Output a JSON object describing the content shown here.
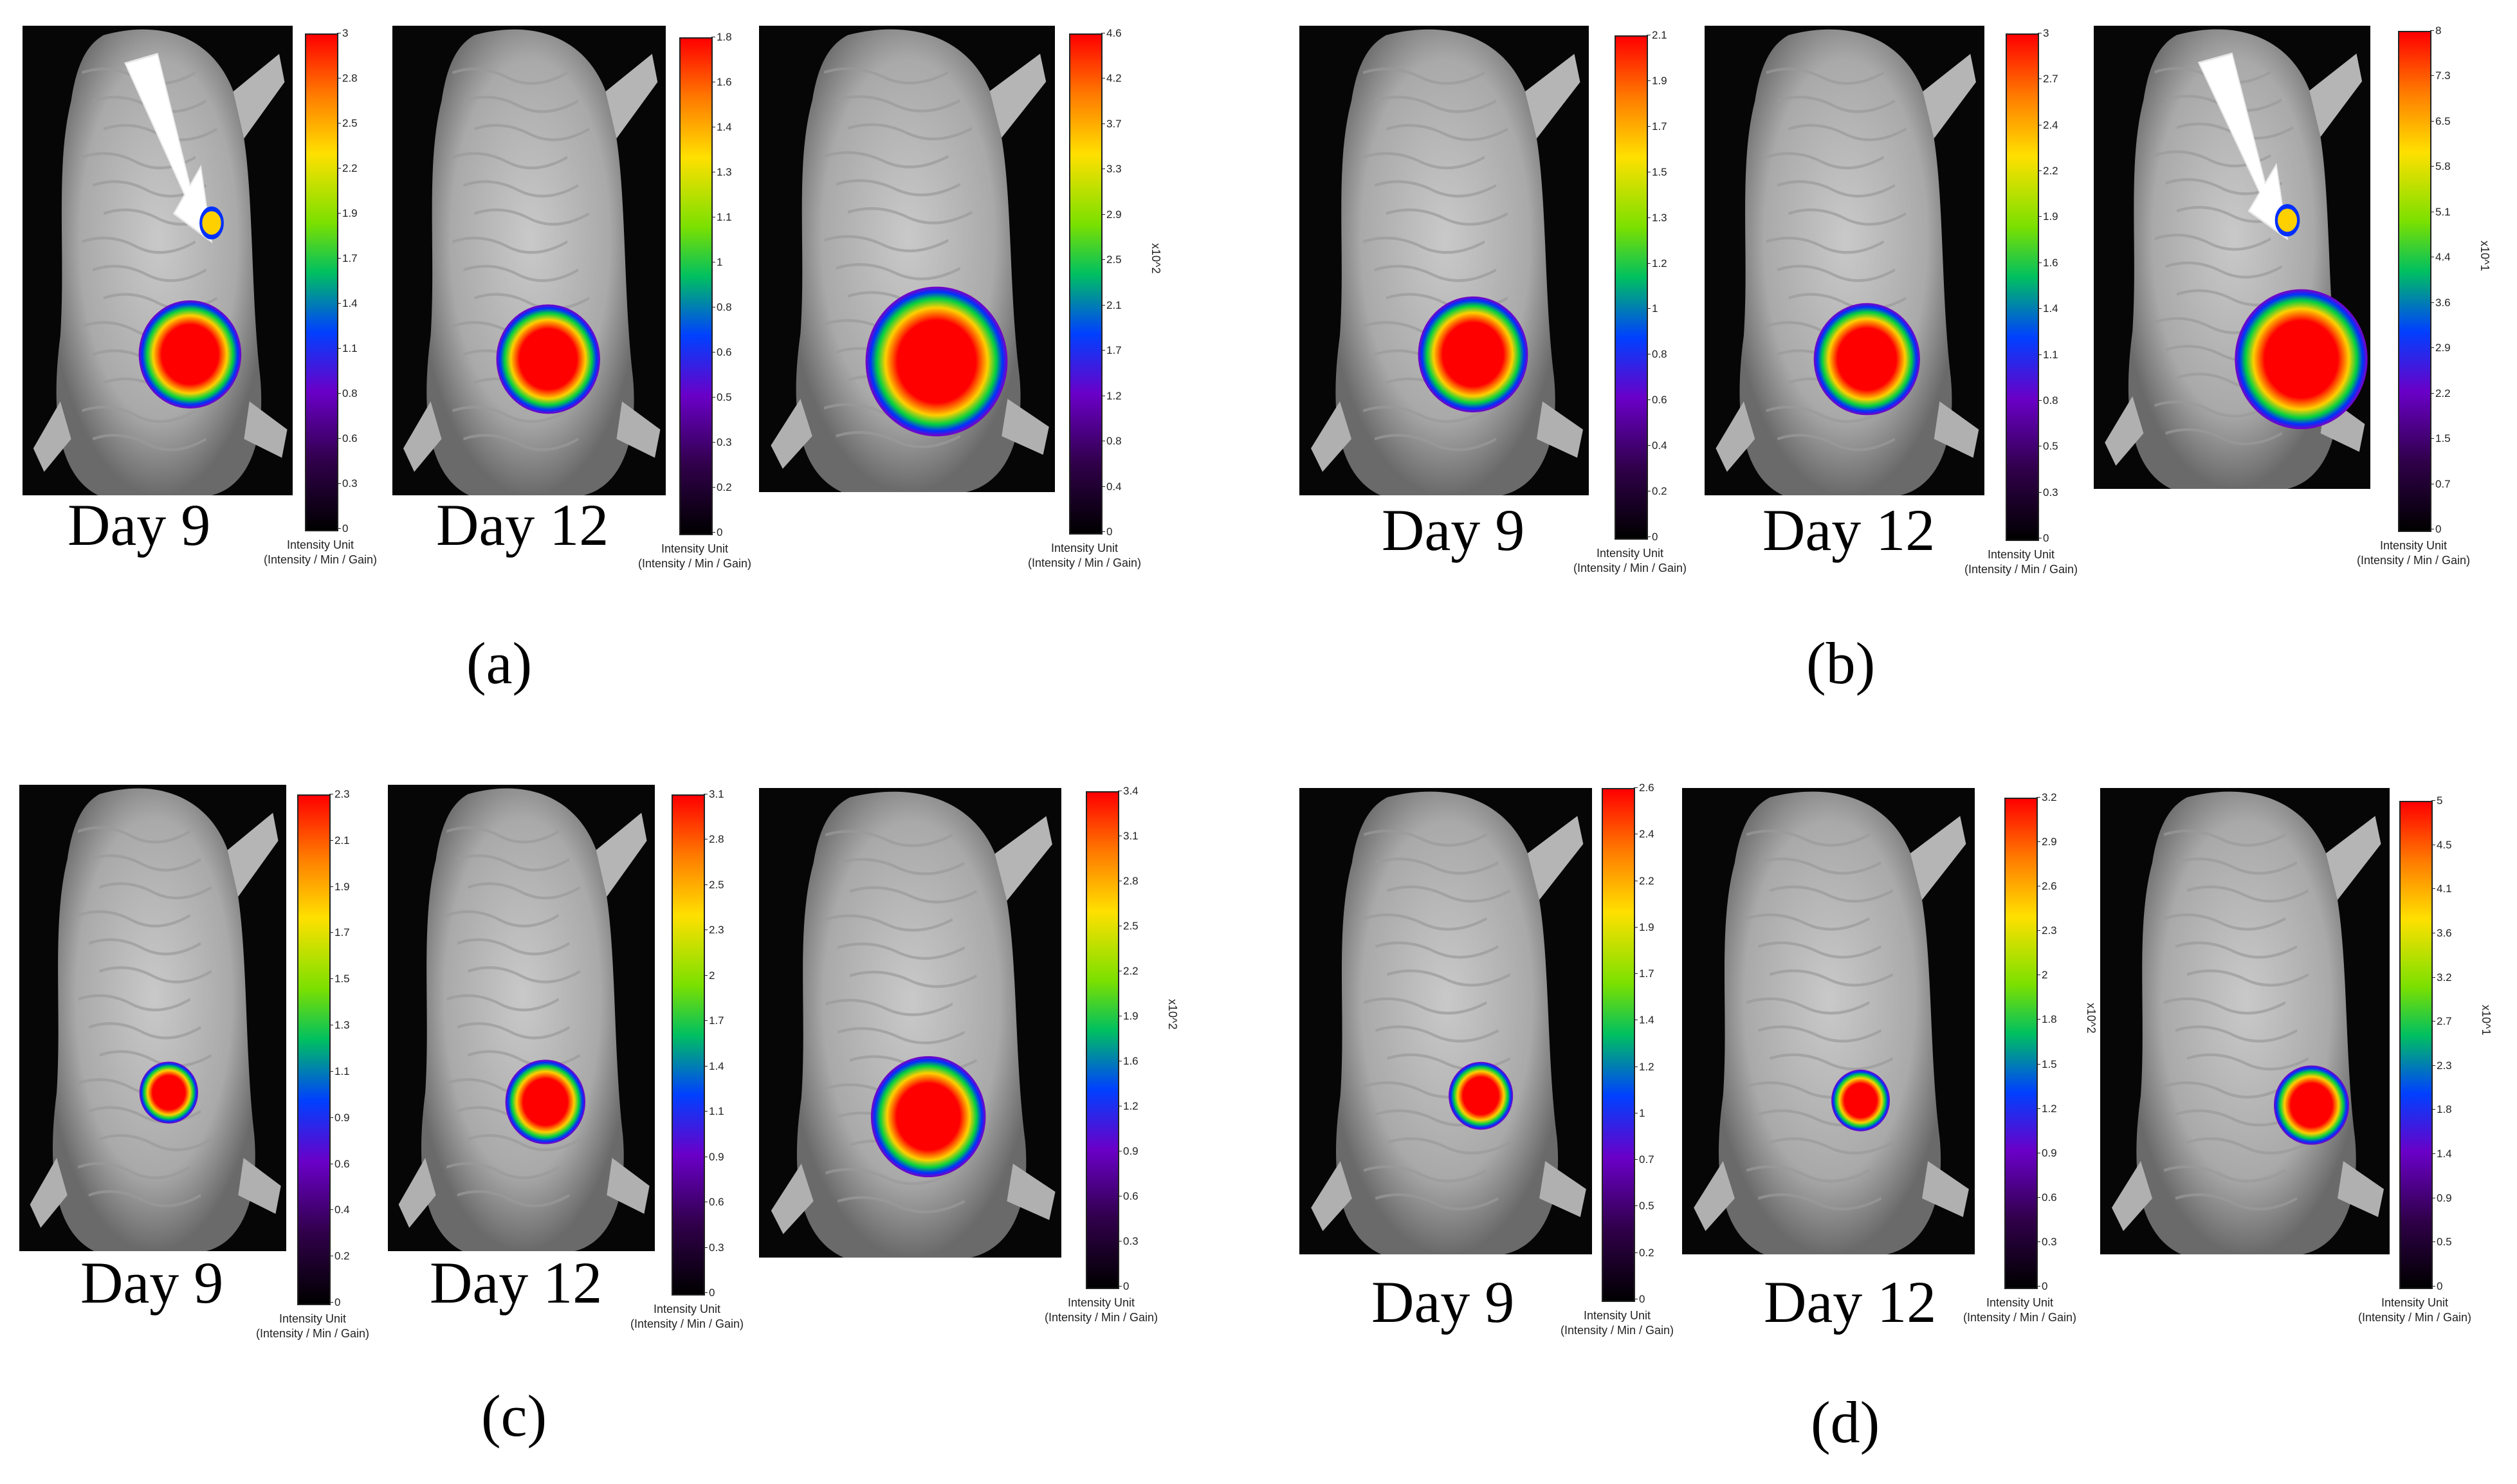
{
  "panels": [
    {
      "id": "a",
      "label": "(a)",
      "day_labels": [
        "Day 9",
        "Day 12"
      ],
      "colorbars": [
        {
          "ticks": [
            "3",
            "2.8",
            "2.5",
            "2.2",
            "1.9",
            "1.7",
            "1.4",
            "1.1",
            "0.8",
            "0.6",
            "0.3",
            "0"
          ],
          "unit_line1": "Intensity Unit",
          "unit_line2": "(Intensity / Min / Gain)",
          "multiplier": ""
        },
        {
          "ticks": [
            "1.8",
            "1.6",
            "1.4",
            "1.3",
            "1.1",
            "1",
            "0.8",
            "0.6",
            "0.5",
            "0.3",
            "0.2",
            "0"
          ],
          "unit_line1": "Intensity Unit",
          "unit_line2": "(Intensity / Min / Gain)",
          "multiplier": ""
        },
        {
          "ticks": [
            "4.6",
            "4.2",
            "3.7",
            "3.3",
            "2.9",
            "2.5",
            "2.1",
            "1.7",
            "1.2",
            "0.8",
            "0.4",
            "0"
          ],
          "unit_line1": "Intensity Unit",
          "unit_line2": "(Intensity / Min / Gain)",
          "multiplier": "x10^2"
        }
      ]
    },
    {
      "id": "b",
      "label": "(b)",
      "day_labels": [
        "Day 9",
        "Day 12"
      ],
      "colorbars": [
        {
          "ticks": [
            "2.1",
            "1.9",
            "1.7",
            "1.5",
            "1.3",
            "1.2",
            "1",
            "0.8",
            "0.6",
            "0.4",
            "0.2",
            "0"
          ],
          "unit_line1": "Intensity Unit",
          "unit_line2": "(Intensity / Min / Gain)",
          "multiplier": ""
        },
        {
          "ticks": [
            "3",
            "2.7",
            "2.4",
            "2.2",
            "1.9",
            "1.6",
            "1.4",
            "1.1",
            "0.8",
            "0.5",
            "0.3",
            "0"
          ],
          "unit_line1": "Intensity Unit",
          "unit_line2": "(Intensity / Min / Gain)",
          "multiplier": ""
        },
        {
          "ticks": [
            "8",
            "7.3",
            "6.5",
            "5.8",
            "5.1",
            "4.4",
            "3.6",
            "2.9",
            "2.2",
            "1.5",
            "0.7",
            "0"
          ],
          "unit_line1": "Intensity Unit",
          "unit_line2": "(Intensity / Min / Gain)",
          "multiplier": "x10^1"
        }
      ]
    },
    {
      "id": "c",
      "label": "(c)",
      "day_labels": [
        "Day 9",
        "Day 12"
      ],
      "colorbars": [
        {
          "ticks": [
            "2.3",
            "2.1",
            "1.9",
            "1.7",
            "1.5",
            "1.3",
            "1.1",
            "0.9",
            "0.6",
            "0.4",
            "0.2",
            "0"
          ],
          "unit_line1": "Intensity Unit",
          "unit_line2": "(Intensity / Min / Gain)",
          "multiplier": ""
        },
        {
          "ticks": [
            "3.1",
            "2.8",
            "2.5",
            "2.3",
            "2",
            "1.7",
            "1.4",
            "1.1",
            "0.9",
            "0.6",
            "0.3",
            "0"
          ],
          "unit_line1": "Intensity Unit",
          "unit_line2": "(Intensity / Min / Gain)",
          "multiplier": ""
        },
        {
          "ticks": [
            "3.4",
            "3.1",
            "2.8",
            "2.5",
            "2.2",
            "1.9",
            "1.6",
            "1.2",
            "0.9",
            "0.6",
            "0.3",
            "0"
          ],
          "unit_line1": "Intensity Unit",
          "unit_line2": "(Intensity / Min / Gain)",
          "multiplier": "x10^2"
        }
      ]
    },
    {
      "id": "d",
      "label": "(d)",
      "day_labels": [
        "Day 9",
        "Day 12"
      ],
      "colorbars": [
        {
          "ticks": [
            "2.6",
            "2.4",
            "2.2",
            "1.9",
            "1.7",
            "1.4",
            "1.2",
            "1",
            "0.7",
            "0.5",
            "0.2",
            "0"
          ],
          "unit_line1": "Intensity Unit",
          "unit_line2": "(Intensity / Min / Gain)",
          "multiplier": ""
        },
        {
          "ticks": [
            "3.2",
            "2.9",
            "2.6",
            "2.3",
            "2",
            "1.8",
            "1.5",
            "1.2",
            "0.9",
            "0.6",
            "0.3",
            "0"
          ],
          "unit_line1": "Intensity Unit",
          "unit_line2": "(Intensity / Min / Gain)",
          "multiplier": "x10^2"
        },
        {
          "ticks": [
            "5",
            "4.5",
            "4.1",
            "3.6",
            "3.2",
            "2.7",
            "2.3",
            "1.8",
            "1.4",
            "0.9",
            "0.5",
            "0"
          ],
          "unit_line1": "Intensity Unit",
          "unit_line2": "(Intensity / Min / Gain)",
          "multiplier": "x10^1"
        }
      ]
    }
  ],
  "colors": {
    "hot": "#ff0000",
    "warm": "#ffd000",
    "mid": "#00d040",
    "cool": "#0030ff",
    "edge": "#8000c0",
    "fur": "#c9c9c9"
  }
}
